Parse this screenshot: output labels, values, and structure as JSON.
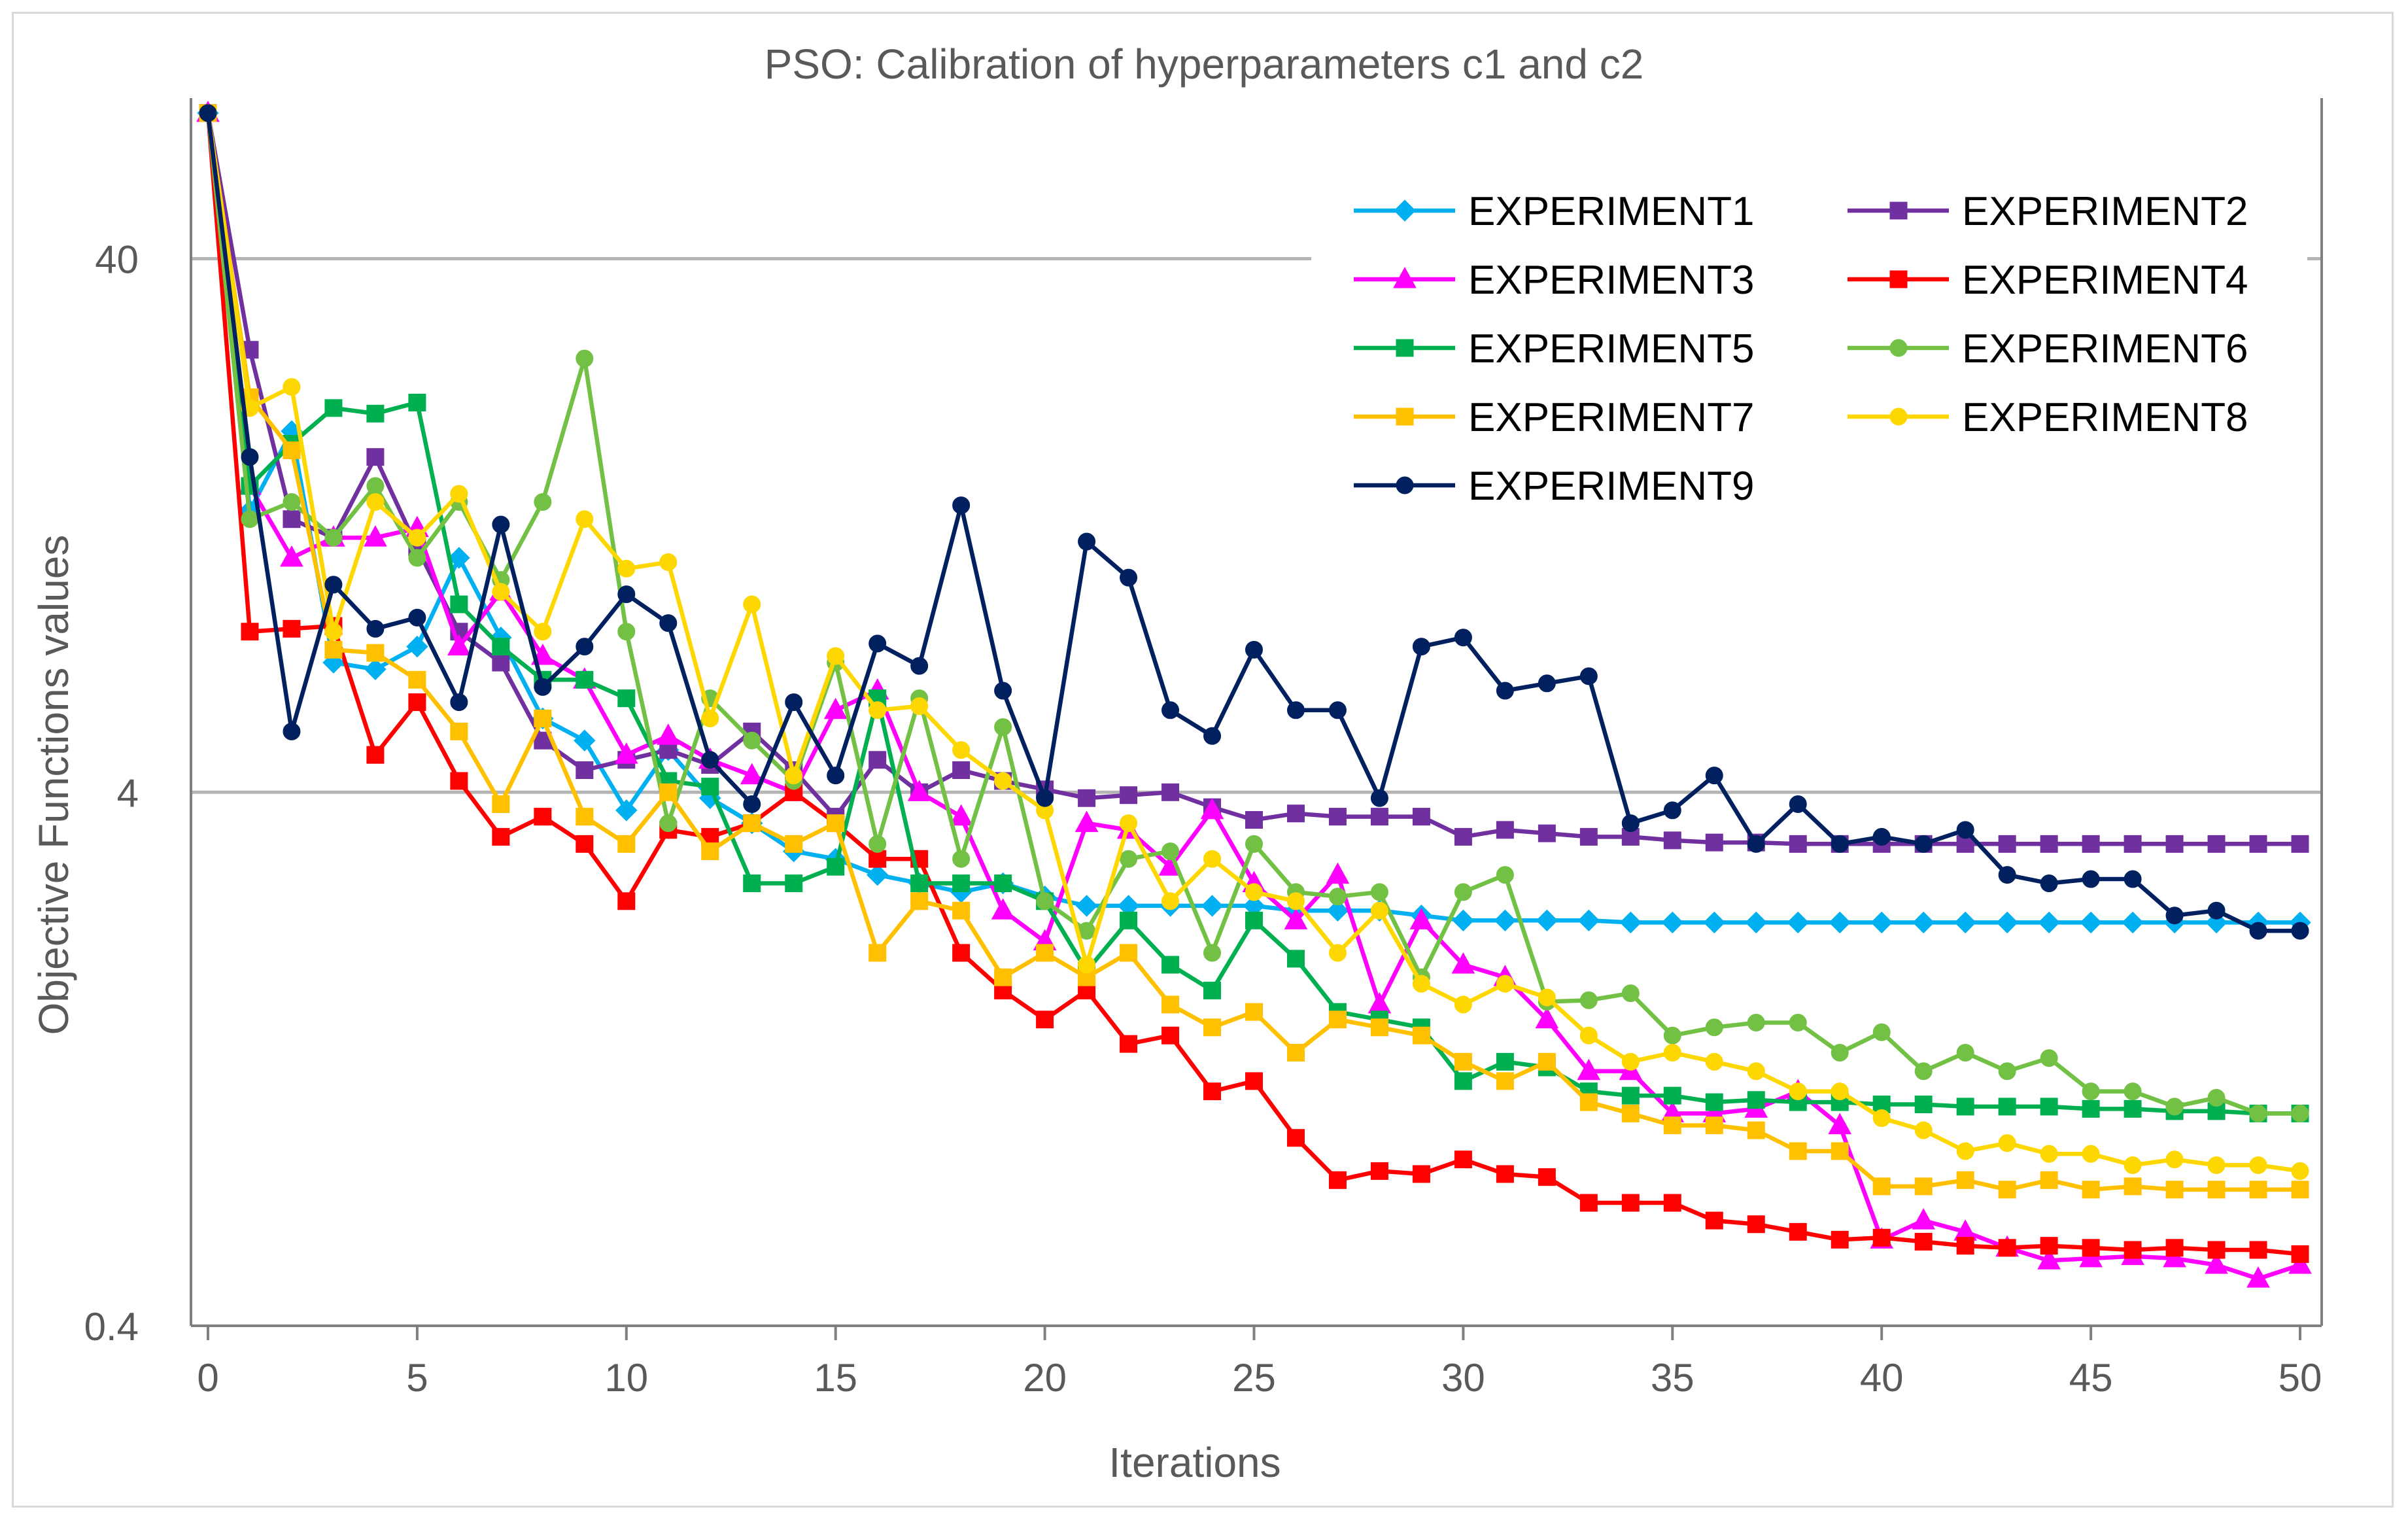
{
  "chart_data": {
    "type": "line",
    "title": "PSO: Calibration of hyperparameters c1 and c2",
    "xlabel": "Iterations",
    "ylabel": "Objective Functions values",
    "yscale": "log",
    "xlim": [
      0,
      50
    ],
    "ylim": [
      0.4,
      80
    ],
    "xticks": [
      0,
      5,
      10,
      15,
      20,
      25,
      30,
      35,
      40,
      45,
      50
    ],
    "yticks": [
      0.4,
      4,
      40
    ],
    "ytick_labels": [
      "0.4",
      "4",
      "40"
    ],
    "grid": "horizontal major",
    "legend_position": "top-right, two columns",
    "series": [
      {
        "name": "EXPERIMENT1",
        "color": "#00b0f0",
        "marker": "diamond",
        "values": [
          75,
          13.5,
          19,
          7,
          6.8,
          7.5,
          11,
          7.8,
          5.5,
          5,
          3.7,
          4.8,
          3.9,
          3.5,
          3.1,
          3.0,
          2.8,
          2.7,
          2.6,
          2.7,
          2.55,
          2.45,
          2.45,
          2.45,
          2.45,
          2.45,
          2.4,
          2.4,
          2.4,
          2.35,
          2.3,
          2.3,
          2.3,
          2.3,
          2.28,
          2.28,
          2.28,
          2.28,
          2.28,
          2.28,
          2.28,
          2.28,
          2.28,
          2.28,
          2.28,
          2.28,
          2.28,
          2.28,
          2.28,
          2.28,
          2.28
        ]
      },
      {
        "name": "EXPERIMENT2",
        "color": "#7030a0",
        "marker": "square",
        "values": [
          75,
          27,
          13,
          12,
          17,
          11.5,
          8,
          7,
          5,
          4.4,
          4.6,
          4.8,
          4.5,
          5.2,
          4.4,
          3.6,
          4.6,
          4,
          4.4,
          4.2,
          4.05,
          3.9,
          3.95,
          4.0,
          3.75,
          3.55,
          3.65,
          3.6,
          3.6,
          3.6,
          3.3,
          3.4,
          3.35,
          3.3,
          3.3,
          3.25,
          3.22,
          3.22,
          3.2,
          3.2,
          3.2,
          3.2,
          3.2,
          3.2,
          3.2,
          3.2,
          3.2,
          3.2,
          3.2,
          3.2,
          3.2
        ]
      },
      {
        "name": "EXPERIMENT3",
        "color": "#ff00ff",
        "marker": "triangle",
        "values": [
          75,
          15,
          11,
          12,
          12,
          12.5,
          7.5,
          9.5,
          7.2,
          6.5,
          4.7,
          5.1,
          4.6,
          4.3,
          4.0,
          5.7,
          6.2,
          4.0,
          3.6,
          2.4,
          2.1,
          3.5,
          3.4,
          2.9,
          3.7,
          2.7,
          2.3,
          2.8,
          1.6,
          2.3,
          1.9,
          1.8,
          1.5,
          1.2,
          1.2,
          1.0,
          1.0,
          1.02,
          1.1,
          0.95,
          0.58,
          0.63,
          0.6,
          0.56,
          0.53,
          0.535,
          0.54,
          0.535,
          0.52,
          0.49,
          0.52
        ]
      },
      {
        "name": "EXPERIMENT4",
        "color": "#ff0000",
        "marker": "square",
        "values": [
          75,
          8,
          8.1,
          8.2,
          4.7,
          5.9,
          4.2,
          3.3,
          3.6,
          3.2,
          2.5,
          3.4,
          3.3,
          3.5,
          4.0,
          3.5,
          3.0,
          3.0,
          2.0,
          1.7,
          1.5,
          1.7,
          1.35,
          1.4,
          1.1,
          1.15,
          0.9,
          0.75,
          0.78,
          0.77,
          0.82,
          0.77,
          0.76,
          0.68,
          0.68,
          0.68,
          0.63,
          0.62,
          0.6,
          0.58,
          0.585,
          0.575,
          0.565,
          0.56,
          0.565,
          0.56,
          0.555,
          0.56,
          0.555,
          0.555,
          0.545
        ]
      },
      {
        "name": "EXPERIMENT5",
        "color": "#00b050",
        "marker": "square",
        "values": [
          75,
          15,
          18,
          21,
          20.5,
          21.5,
          9,
          7.5,
          6.5,
          6.5,
          6.0,
          4.2,
          4.1,
          2.7,
          2.7,
          2.9,
          6.0,
          2.7,
          2.7,
          2.7,
          2.5,
          1.85,
          2.3,
          1.9,
          1.7,
          2.3,
          1.95,
          1.55,
          1.5,
          1.45,
          1.15,
          1.25,
          1.22,
          1.1,
          1.08,
          1.08,
          1.05,
          1.06,
          1.05,
          1.05,
          1.04,
          1.04,
          1.03,
          1.03,
          1.03,
          1.02,
          1.02,
          1.01,
          1.01,
          1.0,
          1.0
        ]
      },
      {
        "name": "EXPERIMENT6",
        "color": "#72c144",
        "marker": "circle",
        "values": [
          75,
          13,
          14,
          12,
          15,
          11,
          14,
          10,
          14,
          26,
          8,
          3.5,
          6,
          5,
          4.2,
          7,
          3.2,
          6,
          3.0,
          5.3,
          2.5,
          2.2,
          3.0,
          3.1,
          2.0,
          3.2,
          2.6,
          2.55,
          2.6,
          1.8,
          2.6,
          2.8,
          1.62,
          1.63,
          1.68,
          1.4,
          1.45,
          1.48,
          1.48,
          1.3,
          1.42,
          1.2,
          1.3,
          1.2,
          1.27,
          1.1,
          1.1,
          1.03,
          1.07,
          1.0,
          1.0
        ]
      },
      {
        "name": "EXPERIMENT7",
        "color": "#ffc000",
        "marker": "square",
        "values": [
          75,
          22,
          17.5,
          7.4,
          7.3,
          6.5,
          5.2,
          3.8,
          5.5,
          3.6,
          3.2,
          4.0,
          3.1,
          3.5,
          3.2,
          3.5,
          2.0,
          2.5,
          2.4,
          1.8,
          2.0,
          1.8,
          2.0,
          1.6,
          1.45,
          1.55,
          1.3,
          1.5,
          1.45,
          1.4,
          1.25,
          1.15,
          1.25,
          1.05,
          1.0,
          0.95,
          0.95,
          0.93,
          0.85,
          0.85,
          0.73,
          0.73,
          0.75,
          0.72,
          0.75,
          0.72,
          0.73,
          0.72,
          0.72,
          0.72,
          0.72
        ]
      },
      {
        "name": "EXPERIMENT8",
        "color": "#ffd700",
        "marker": "circle",
        "values": [
          75,
          21,
          23,
          8,
          14,
          12,
          14.5,
          9.5,
          8,
          13,
          10.5,
          10.8,
          5.5,
          9.0,
          4.3,
          7.2,
          5.7,
          5.8,
          4.8,
          4.2,
          3.7,
          1.9,
          3.5,
          2.5,
          3.0,
          2.6,
          2.5,
          2.0,
          2.4,
          1.75,
          1.6,
          1.75,
          1.65,
          1.4,
          1.25,
          1.3,
          1.25,
          1.2,
          1.1,
          1.1,
          0.98,
          0.93,
          0.85,
          0.88,
          0.84,
          0.84,
          0.8,
          0.82,
          0.8,
          0.8,
          0.78
        ]
      },
      {
        "name": "EXPERIMENT9",
        "color": "#002060",
        "marker": "circle",
        "values": [
          75,
          17,
          5.2,
          9.8,
          8.1,
          8.5,
          5.9,
          12.7,
          6.3,
          7.5,
          9.4,
          8.3,
          4.6,
          3.8,
          5.9,
          4.3,
          7.6,
          6.9,
          13.8,
          6.2,
          3.9,
          11.8,
          10.1,
          5.7,
          5.1,
          7.4,
          5.7,
          5.7,
          3.9,
          7.5,
          7.8,
          6.2,
          6.4,
          6.6,
          3.5,
          3.7,
          4.3,
          3.2,
          3.8,
          3.2,
          3.3,
          3.2,
          3.4,
          2.8,
          2.7,
          2.75,
          2.75,
          2.35,
          2.4,
          2.2,
          2.2
        ]
      }
    ]
  }
}
